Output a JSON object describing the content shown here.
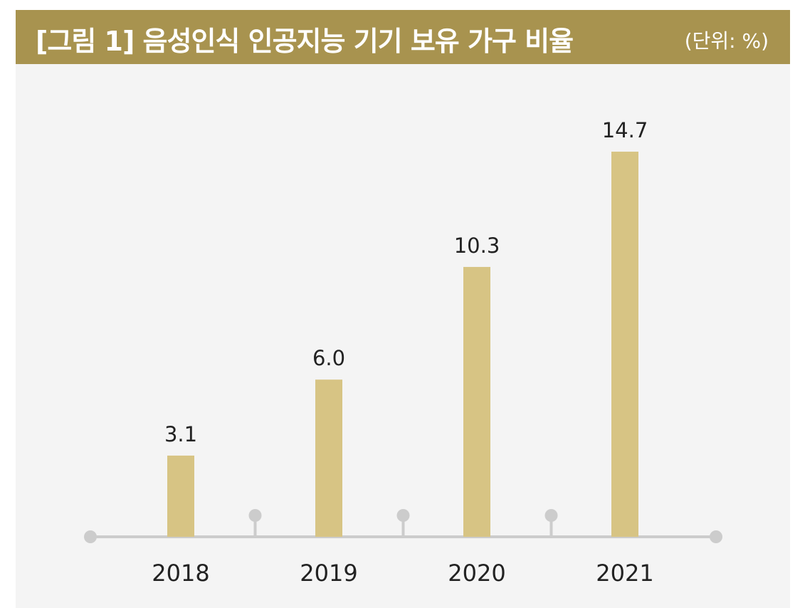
{
  "header": {
    "title": "[그림 1]  음성인식 인공지능 기기 보유 가구 비율",
    "unit": "(단위: %)"
  },
  "colors": {
    "header_bg": "#a8934f",
    "bar": "#d7c484",
    "axis": "#cccccc",
    "plot_bg": "#f4f4f4"
  },
  "chart_data": {
    "type": "bar",
    "categories": [
      "2018",
      "2019",
      "2020",
      "2021"
    ],
    "values": [
      3.1,
      6.0,
      10.3,
      14.7
    ],
    "value_labels": [
      "3.1",
      "6.0",
      "10.3",
      "14.7"
    ],
    "title": "[그림 1]  음성인식 인공지능 기기 보유 가구 비율",
    "unit": "(단위: %)",
    "xlabel": "",
    "ylabel": "",
    "ylim": [
      0,
      16
    ],
    "grid": false,
    "legend": "none"
  }
}
